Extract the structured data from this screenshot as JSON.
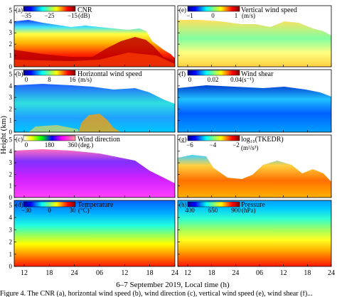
{
  "figure": {
    "y_axis_label": "Height (km)",
    "x_axis_label": "6–7 September 2019, Local time (h)",
    "caption_visible": "Figure 4. The CNR (a), horizontal wind speed (b), wind direction (c), vertical wind speed (e), wind shear (f)..."
  },
  "chart_data": [
    {
      "type": "heatmap",
      "panel": "(a)",
      "quantity": "CNR",
      "unit": "(dB)",
      "colorbar_ticks": [
        "−35",
        "−25",
        "−15"
      ],
      "colormap": "jet",
      "x_ticks": [
        "12",
        "18",
        "24",
        "06",
        "12",
        "18",
        "24"
      ],
      "y_ticks": [
        "0",
        "1",
        "2",
        "3",
        "4",
        "5"
      ],
      "ylim": [
        0,
        5.4
      ]
    },
    {
      "type": "heatmap",
      "panel": "(b)",
      "quantity": "Horizontal wind speed",
      "unit": "(m/s)",
      "colorbar_ticks": [
        "0",
        "8",
        "16"
      ],
      "colormap": "jet",
      "x_ticks": [
        "12",
        "18",
        "24",
        "06",
        "12",
        "18",
        "24"
      ],
      "y_ticks": [
        "0",
        "1",
        "2",
        "3",
        "4",
        "5"
      ],
      "ylim": [
        0,
        5.4
      ]
    },
    {
      "type": "heatmap",
      "panel": "(c)",
      "quantity": "Wind direction",
      "unit": "(deg.)",
      "colorbar_ticks": [
        "0",
        "180",
        "360"
      ],
      "colormap": "jet-magenta",
      "x_ticks": [
        "12",
        "18",
        "24",
        "06",
        "12",
        "18",
        "24"
      ],
      "y_ticks": [
        "0",
        "1",
        "2",
        "3",
        "4",
        "5"
      ],
      "ylim": [
        0,
        5.4
      ]
    },
    {
      "type": "heatmap",
      "panel": "(d)",
      "quantity": "Temperature",
      "unit": "(°C)",
      "colorbar_ticks": [
        "−30",
        "0",
        "30"
      ],
      "colormap": "jet",
      "x_ticks": [
        "12",
        "18",
        "24",
        "06",
        "12",
        "18",
        "24"
      ],
      "y_ticks": [
        "0",
        "1",
        "2",
        "3",
        "4",
        "5"
      ],
      "ylim": [
        0,
        5.4
      ]
    },
    {
      "type": "heatmap",
      "panel": "(e)",
      "quantity": "Vertical wind speed",
      "unit": "(m/s)",
      "colorbar_ticks": [
        "−1",
        "0",
        "1"
      ],
      "colormap": "jet",
      "x_ticks": [
        "12",
        "18",
        "24",
        "06",
        "12",
        "18",
        "24"
      ],
      "y_ticks": [
        "0",
        "1",
        "2",
        "3",
        "4",
        "5"
      ],
      "ylim": [
        0,
        5.4
      ]
    },
    {
      "type": "heatmap",
      "panel": "(f)",
      "quantity": "Wind shear",
      "unit": "(s⁻¹)",
      "colorbar_ticks": [
        "0",
        "0.02",
        "0.04"
      ],
      "colormap": "jet",
      "x_ticks": [
        "12",
        "18",
        "24",
        "06",
        "12",
        "18",
        "24"
      ],
      "y_ticks": [
        "0",
        "1",
        "2",
        "3",
        "4",
        "5"
      ],
      "ylim": [
        0,
        5.4
      ]
    },
    {
      "type": "heatmap",
      "panel": "(g)",
      "quantity": "log₁₀(TKEDR)",
      "unit": "(m²/s³)",
      "colorbar_ticks": [
        "−6",
        "−4",
        "−2"
      ],
      "colormap": "jet",
      "x_ticks": [
        "12",
        "18",
        "24",
        "06",
        "12",
        "18",
        "24"
      ],
      "y_ticks": [
        "0",
        "1",
        "2",
        "3",
        "4",
        "5"
      ],
      "ylim": [
        0,
        5.4
      ]
    },
    {
      "type": "heatmap",
      "panel": "(h)",
      "quantity": "Pressure",
      "unit": "(hPa)",
      "colorbar_ticks": [
        "400",
        "650",
        "900"
      ],
      "colormap": "jet",
      "x_ticks": [
        "12",
        "18",
        "24",
        "06",
        "12",
        "18",
        "24"
      ],
      "y_ticks": [
        "0",
        "1",
        "2",
        "3",
        "4",
        "5"
      ],
      "ylim": [
        0,
        5.4
      ]
    }
  ]
}
